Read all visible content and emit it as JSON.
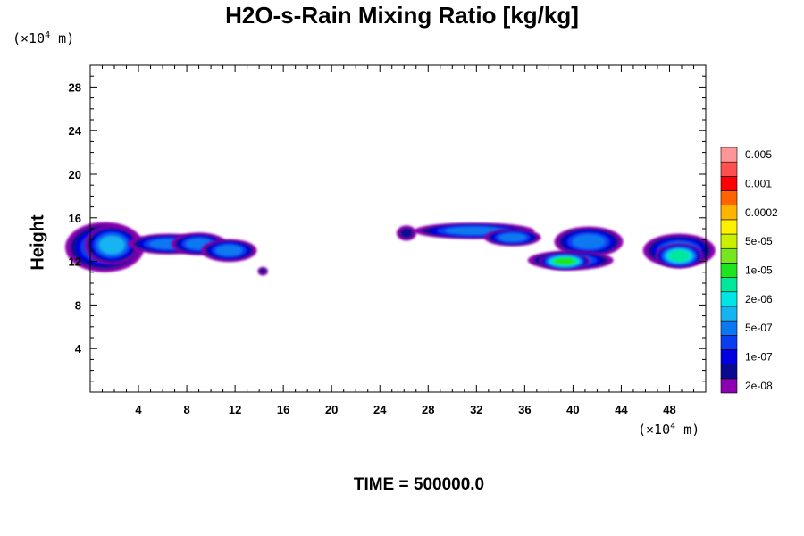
{
  "chart_data": {
    "type": "heatmap",
    "title": "H2O-s-Rain Mixing Ratio [kg/kg]",
    "ylabel": "Height",
    "x_unit": {
      "prefix": "(×10",
      "exp": "4",
      "suffix": " m)"
    },
    "y_unit": {
      "prefix": "(×10",
      "exp": "4",
      "suffix": " m)"
    },
    "xlim": [
      0,
      51
    ],
    "ylim": [
      0,
      30
    ],
    "x_ticks": [
      "4",
      "8",
      "12",
      "16",
      "20",
      "24",
      "28",
      "32",
      "36",
      "40",
      "44",
      "48"
    ],
    "y_ticks": [
      "4",
      "8",
      "12",
      "16",
      "20",
      "24",
      "28"
    ],
    "colorbar": {
      "colors": [
        "#8B00B0",
        "#0A0A90",
        "#0000E0",
        "#0A3CF0",
        "#0A78F0",
        "#14B4F0",
        "#00E6E6",
        "#00E69A",
        "#1EE61E",
        "#78E61E",
        "#C8F000",
        "#FFF000",
        "#FFB400",
        "#FF6400",
        "#FF0000",
        "#FF5050",
        "#FF9696"
      ],
      "labels": [
        "2e-08",
        "1e-07",
        "5e-07",
        "2e-06",
        "1e-05",
        "5e-05",
        "0.0002",
        "0.001",
        "0.005"
      ]
    },
    "clouds": [
      {
        "x": 1.2,
        "y": 13.3,
        "w": 2.4,
        "h": 1.3,
        "level": 4,
        "rx": 3.5,
        "ry": 2.0
      },
      {
        "x": 1.8,
        "y": 13.5,
        "w": 1.4,
        "h": 0.8,
        "level": 5,
        "rx": 3.5,
        "ry": 2.0
      },
      {
        "x": 6.5,
        "y": 13.6,
        "w": 2.8,
        "h": 0.5,
        "level": 4,
        "rx": 2.2,
        "ry": 0.9
      },
      {
        "x": 9.0,
        "y": 13.6,
        "w": 1.8,
        "h": 0.6,
        "level": 4,
        "rx": 2.0,
        "ry": 0.9
      },
      {
        "x": 11.5,
        "y": 13.0,
        "w": 1.8,
        "h": 0.6,
        "level": 4,
        "rx": 2.0,
        "ry": 0.9
      },
      {
        "x": 14.3,
        "y": 11.1,
        "w": 0.3,
        "h": 0.2,
        "level": 1,
        "rx": 0.5,
        "ry": 0.4
      },
      {
        "x": 26.2,
        "y": 14.6,
        "w": 0.6,
        "h": 0.4,
        "level": 1,
        "rx": 0.9,
        "ry": 0.6
      },
      {
        "x": 31.8,
        "y": 14.8,
        "w": 3.8,
        "h": 0.3,
        "level": 4,
        "rx": 4.8,
        "ry": 0.9
      },
      {
        "x": 35.0,
        "y": 14.2,
        "w": 1.8,
        "h": 0.4,
        "level": 4,
        "rx": 2.2,
        "ry": 0.8
      },
      {
        "x": 41.3,
        "y": 13.8,
        "w": 2.2,
        "h": 0.8,
        "level": 4,
        "rx": 2.6,
        "ry": 1.2
      },
      {
        "x": 39.8,
        "y": 12.1,
        "w": 2.8,
        "h": 0.5,
        "level": 4,
        "rx": 3.0,
        "ry": 0.8
      },
      {
        "x": 39.3,
        "y": 12.0,
        "w": 1.6,
        "h": 0.4,
        "level": 8,
        "rx": 2.0,
        "ry": 0.8
      },
      {
        "x": 48.8,
        "y": 13.0,
        "w": 2.2,
        "h": 0.8,
        "level": 4,
        "rx": 3.2,
        "ry": 1.5
      },
      {
        "x": 48.8,
        "y": 12.5,
        "w": 1.2,
        "h": 0.4,
        "level": 7,
        "rx": 3.2,
        "ry": 1.5
      }
    ]
  },
  "footer": "TIME = 500000.0"
}
